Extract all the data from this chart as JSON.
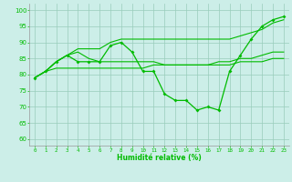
{
  "xlabel": "Humidité relative (%)",
  "background_color": "#cceee8",
  "grid_color": "#99ccbb",
  "line_color": "#00bb00",
  "xlim": [
    -0.5,
    23.5
  ],
  "ylim": [
    58,
    102
  ],
  "yticks": [
    60,
    65,
    70,
    75,
    80,
    85,
    90,
    95,
    100
  ],
  "xticks": [
    0,
    1,
    2,
    3,
    4,
    5,
    6,
    7,
    8,
    9,
    10,
    11,
    12,
    13,
    14,
    15,
    16,
    17,
    18,
    19,
    20,
    21,
    22,
    23
  ],
  "series1": [
    79,
    81,
    84,
    86,
    84,
    84,
    84,
    89,
    90,
    87,
    81,
    81,
    74,
    72,
    72,
    69,
    70,
    69,
    81,
    86,
    91,
    95,
    97,
    98
  ],
  "series2": [
    79,
    81,
    84,
    86,
    87,
    85,
    84,
    84,
    84,
    84,
    84,
    84,
    83,
    83,
    83,
    83,
    83,
    84,
    84,
    85,
    85,
    86,
    87,
    87
  ],
  "series3": [
    79,
    81,
    82,
    82,
    82,
    82,
    82,
    82,
    82,
    82,
    82,
    83,
    83,
    83,
    83,
    83,
    83,
    83,
    83,
    84,
    84,
    84,
    85,
    85
  ],
  "series4": [
    79,
    81,
    84,
    86,
    88,
    88,
    88,
    90,
    91,
    91,
    91,
    91,
    91,
    91,
    91,
    91,
    91,
    91,
    91,
    92,
    93,
    94,
    96,
    97
  ]
}
